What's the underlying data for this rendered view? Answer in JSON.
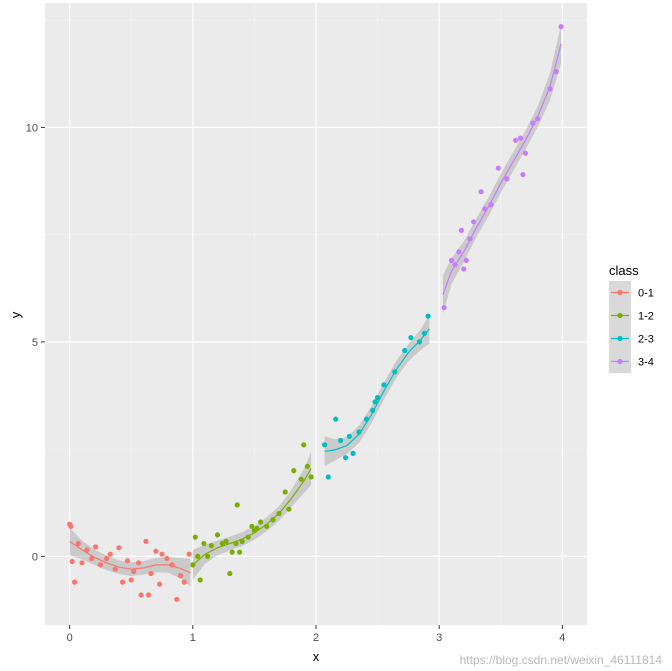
{
  "chart_data": {
    "type": "scatter",
    "title": "",
    "xlabel": "x",
    "ylabel": "y",
    "xlim": [
      -0.2,
      4.2
    ],
    "ylim": [
      -1.6,
      12.9
    ],
    "x_ticks": [
      0,
      1,
      2,
      3,
      4
    ],
    "x_tick_labels": [
      "0",
      "1",
      "2",
      "3",
      "4"
    ],
    "y_ticks": [
      0,
      5,
      10
    ],
    "y_tick_labels": [
      "0",
      "5",
      "10"
    ],
    "grid": true,
    "legend": {
      "title": "class",
      "position": "right"
    },
    "series": [
      {
        "name": "0-1",
        "color": "#F8766D",
        "points": [
          [
            0.0,
            0.75
          ],
          [
            0.01,
            0.7
          ],
          [
            0.02,
            -0.12
          ],
          [
            0.04,
            -0.6
          ],
          [
            0.07,
            0.3
          ],
          [
            0.1,
            -0.15
          ],
          [
            0.14,
            0.15
          ],
          [
            0.18,
            -0.05
          ],
          [
            0.21,
            0.22
          ],
          [
            0.25,
            -0.2
          ],
          [
            0.3,
            -0.05
          ],
          [
            0.33,
            0.05
          ],
          [
            0.37,
            -0.3
          ],
          [
            0.4,
            0.2
          ],
          [
            0.43,
            -0.6
          ],
          [
            0.47,
            -0.1
          ],
          [
            0.5,
            -0.55
          ],
          [
            0.52,
            -0.35
          ],
          [
            0.56,
            -0.15
          ],
          [
            0.58,
            -0.9
          ],
          [
            0.62,
            0.35
          ],
          [
            0.64,
            -0.9
          ],
          [
            0.66,
            -0.4
          ],
          [
            0.7,
            0.12
          ],
          [
            0.73,
            -0.65
          ],
          [
            0.75,
            0.05
          ],
          [
            0.79,
            -0.05
          ],
          [
            0.83,
            -0.2
          ],
          [
            0.87,
            -1.0
          ],
          [
            0.9,
            -0.45
          ],
          [
            0.93,
            -0.6
          ],
          [
            0.97,
            0.05
          ]
        ],
        "fit_x": [
          0.0,
          0.1,
          0.2,
          0.3,
          0.4,
          0.5,
          0.6,
          0.7,
          0.8,
          0.9,
          0.98
        ],
        "fit_y": [
          0.35,
          0.15,
          -0.02,
          -0.15,
          -0.25,
          -0.3,
          -0.27,
          -0.2,
          -0.2,
          -0.28,
          -0.38
        ],
        "fit_se": [
          0.32,
          0.22,
          0.18,
          0.17,
          0.16,
          0.16,
          0.16,
          0.17,
          0.18,
          0.24,
          0.32
        ]
      },
      {
        "name": "1-2",
        "color": "#7CAE00",
        "points": [
          [
            1.0,
            -0.2
          ],
          [
            1.02,
            0.45
          ],
          [
            1.04,
            0.0
          ],
          [
            1.06,
            -0.55
          ],
          [
            1.09,
            0.3
          ],
          [
            1.12,
            0.0
          ],
          [
            1.15,
            0.25
          ],
          [
            1.2,
            0.5
          ],
          [
            1.24,
            0.3
          ],
          [
            1.27,
            0.35
          ],
          [
            1.3,
            -0.4
          ],
          [
            1.32,
            0.1
          ],
          [
            1.35,
            0.3
          ],
          [
            1.36,
            1.2
          ],
          [
            1.38,
            0.1
          ],
          [
            1.4,
            0.35
          ],
          [
            1.45,
            0.45
          ],
          [
            1.48,
            0.7
          ],
          [
            1.5,
            0.6
          ],
          [
            1.52,
            0.65
          ],
          [
            1.55,
            0.8
          ],
          [
            1.6,
            0.7
          ],
          [
            1.65,
            0.85
          ],
          [
            1.7,
            1.0
          ],
          [
            1.75,
            1.5
          ],
          [
            1.78,
            1.1
          ],
          [
            1.82,
            2.0
          ],
          [
            1.88,
            1.8
          ],
          [
            1.9,
            2.6
          ],
          [
            1.93,
            2.1
          ],
          [
            1.96,
            1.85
          ]
        ],
        "fit_x": [
          1.0,
          1.1,
          1.2,
          1.3,
          1.4,
          1.5,
          1.6,
          1.7,
          1.8,
          1.9,
          1.96
        ],
        "fit_y": [
          -0.2,
          0.05,
          0.2,
          0.3,
          0.4,
          0.55,
          0.75,
          1.0,
          1.35,
          1.75,
          2.05
        ],
        "fit_se": [
          0.35,
          0.22,
          0.17,
          0.16,
          0.16,
          0.16,
          0.16,
          0.17,
          0.2,
          0.28,
          0.38
        ]
      },
      {
        "name": "2-3",
        "color": "#00BFC4",
        "points": [
          [
            2.07,
            2.6
          ],
          [
            2.1,
            1.85
          ],
          [
            2.16,
            3.2
          ],
          [
            2.2,
            2.7
          ],
          [
            2.24,
            2.3
          ],
          [
            2.27,
            2.8
          ],
          [
            2.3,
            2.4
          ],
          [
            2.35,
            2.9
          ],
          [
            2.41,
            3.2
          ],
          [
            2.46,
            3.4
          ],
          [
            2.48,
            3.6
          ],
          [
            2.5,
            3.7
          ],
          [
            2.55,
            4.0
          ],
          [
            2.64,
            4.3
          ],
          [
            2.72,
            4.8
          ],
          [
            2.77,
            5.1
          ],
          [
            2.84,
            5.0
          ],
          [
            2.88,
            5.2
          ],
          [
            2.91,
            5.6
          ]
        ],
        "fit_x": [
          2.07,
          2.15,
          2.25,
          2.35,
          2.45,
          2.55,
          2.65,
          2.75,
          2.85,
          2.92
        ],
        "fit_y": [
          2.45,
          2.48,
          2.58,
          2.85,
          3.3,
          3.85,
          4.35,
          4.75,
          5.05,
          5.3
        ],
        "fit_se": [
          0.35,
          0.25,
          0.2,
          0.2,
          0.2,
          0.2,
          0.2,
          0.2,
          0.24,
          0.34
        ]
      },
      {
        "name": "3-4",
        "color": "#C77CFF",
        "points": [
          [
            3.04,
            5.8
          ],
          [
            3.1,
            6.9
          ],
          [
            3.13,
            6.8
          ],
          [
            3.16,
            7.1
          ],
          [
            3.18,
            7.6
          ],
          [
            3.2,
            6.7
          ],
          [
            3.22,
            6.9
          ],
          [
            3.25,
            7.4
          ],
          [
            3.28,
            7.8
          ],
          [
            3.34,
            8.5
          ],
          [
            3.37,
            8.1
          ],
          [
            3.42,
            8.2
          ],
          [
            3.48,
            9.05
          ],
          [
            3.55,
            8.8
          ],
          [
            3.62,
            9.7
          ],
          [
            3.66,
            9.75
          ],
          [
            3.68,
            8.9
          ],
          [
            3.7,
            9.4
          ],
          [
            3.76,
            10.1
          ],
          [
            3.8,
            10.2
          ],
          [
            3.9,
            10.9
          ],
          [
            3.95,
            11.3
          ],
          [
            3.99,
            12.35
          ]
        ],
        "fit_x": [
          3.03,
          3.1,
          3.2,
          3.3,
          3.4,
          3.5,
          3.6,
          3.7,
          3.8,
          3.9,
          3.99
        ],
        "fit_y": [
          6.1,
          6.65,
          7.1,
          7.65,
          8.15,
          8.7,
          9.2,
          9.7,
          10.25,
          10.95,
          11.95
        ],
        "fit_se": [
          0.45,
          0.3,
          0.24,
          0.22,
          0.22,
          0.22,
          0.22,
          0.22,
          0.24,
          0.32,
          0.45
        ]
      }
    ]
  },
  "watermark": "https://blog.csdn.net/weixin_46111814"
}
